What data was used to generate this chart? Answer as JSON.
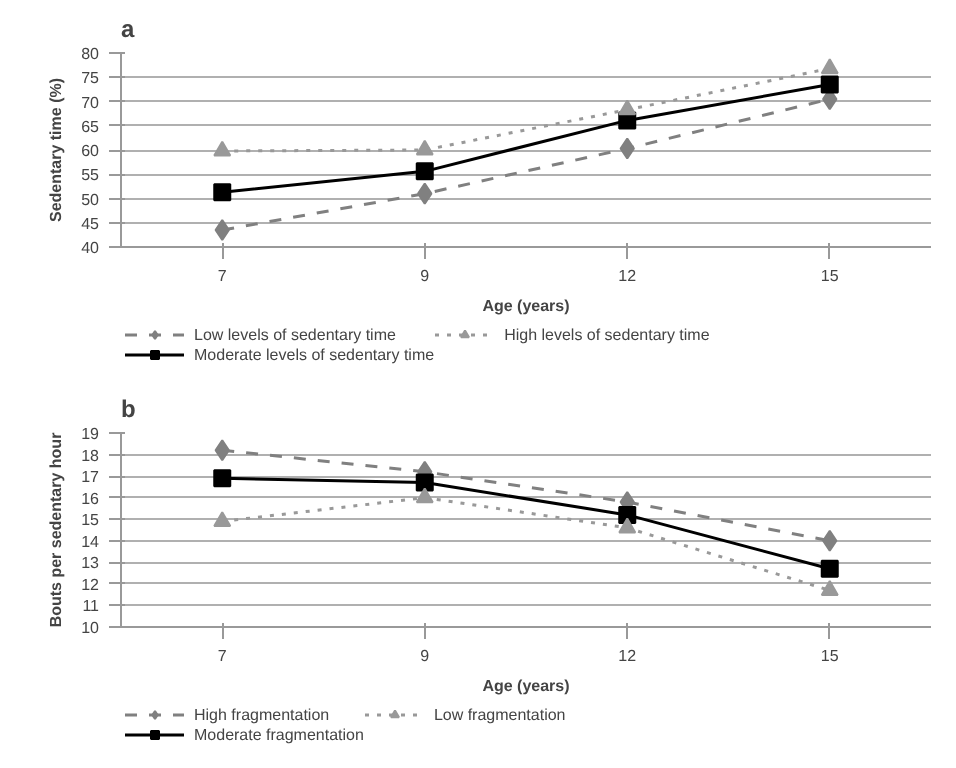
{
  "chart_data": [
    {
      "type": "line",
      "title": "a",
      "xlabel": "Age (years)",
      "ylabel": "Sedentary time (%)",
      "categories": [
        "7",
        "9",
        "12",
        "15"
      ],
      "ylim": [
        40,
        80
      ],
      "yticks": [
        40,
        45,
        50,
        55,
        60,
        65,
        70,
        75,
        80
      ],
      "grid": "y",
      "legend": "bottom",
      "series": [
        {
          "name": "Low levels of sedentary time",
          "color": "#808080",
          "marker": "diamond",
          "line_style": "dashed",
          "values": [
            43.5,
            51,
            60.3,
            70.5
          ]
        },
        {
          "name": "Moderate levels of sedentary time",
          "color": "#000000",
          "marker": "square",
          "line_style": "solid",
          "values": [
            51.3,
            55.6,
            66.1,
            73.5
          ]
        },
        {
          "name": "High levels of sedentary time",
          "color": "#999999",
          "marker": "triangle",
          "line_style": "dotted",
          "values": [
            59.8,
            60,
            68.3,
            76.8
          ]
        }
      ]
    },
    {
      "type": "line",
      "title": "b",
      "xlabel": "Age (years)",
      "ylabel": "Bouts per sedentary hour",
      "categories": [
        "7",
        "9",
        "12",
        "15"
      ],
      "ylim": [
        10,
        19
      ],
      "yticks": [
        10,
        11,
        12,
        13,
        14,
        15,
        16,
        17,
        18,
        19
      ],
      "grid": "y",
      "legend": "bottom",
      "series": [
        {
          "name": "High fragmentation",
          "color": "#808080",
          "marker": "diamond",
          "line_style": "dashed",
          "values": [
            18.2,
            17.2,
            15.8,
            14.0
          ]
        },
        {
          "name": "Moderate fragmentation",
          "color": "#000000",
          "marker": "square",
          "line_style": "solid",
          "values": [
            16.9,
            16.7,
            15.2,
            12.7
          ]
        },
        {
          "name": "Low fragmentation",
          "color": "#999999",
          "marker": "triangle",
          "line_style": "dotted",
          "values": [
            14.9,
            16.0,
            14.6,
            11.7
          ]
        }
      ]
    }
  ]
}
